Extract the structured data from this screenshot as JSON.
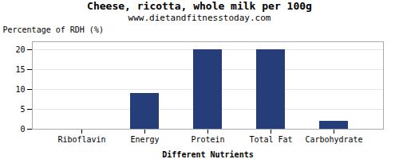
{
  "chart_data": {
    "type": "bar",
    "title": "Cheese, ricotta, whole milk per 100g",
    "subtitle": "www.dietandfitnesstoday.com",
    "xlabel": "Different Nutrients",
    "ylabel": "Percentage of RDH (%)",
    "categories": [
      "Riboflavin",
      "Energy",
      "Protein",
      "Total Fat",
      "Carbohydrate"
    ],
    "values": [
      0,
      9,
      20,
      20,
      2
    ],
    "color": "#253e7a",
    "ylim": [
      0,
      22
    ],
    "yticks": [
      0,
      5,
      10,
      15,
      20
    ],
    "grid": true
  }
}
